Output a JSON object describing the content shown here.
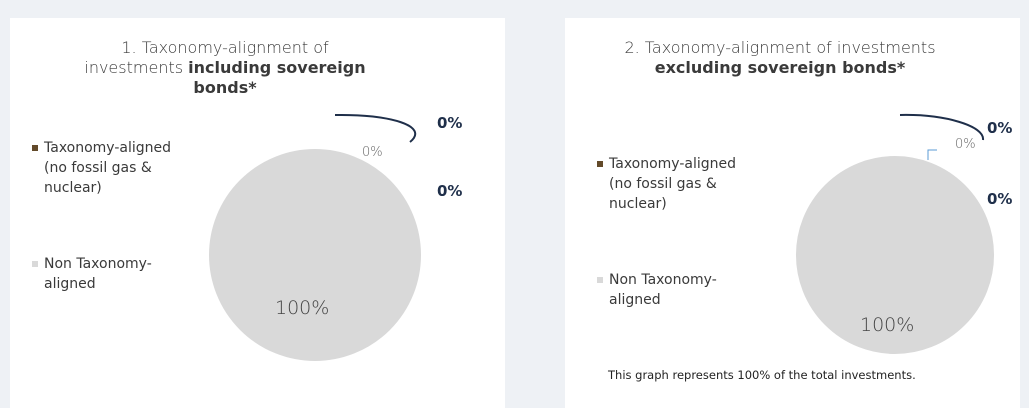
{
  "chart_data": [
    {
      "type": "pie",
      "title": {
        "text": "1. Taxonomy-alignment of investments",
        "bold": "including sovereign bonds*"
      },
      "series": [
        {
          "name": "Taxonomy-aligned (no fossil gas & nuclear)",
          "color": "#634a2a",
          "values": [
            0
          ]
        },
        {
          "name": "Non Taxonomy-aligned",
          "color": "#d9d9d9",
          "values": [
            100
          ]
        }
      ],
      "value_labels": [
        "0%",
        "100%"
      ],
      "annotations": [
        "0%",
        "0%"
      ]
    },
    {
      "type": "pie",
      "title": {
        "text": "2. Taxonomy-alignment of investments",
        "bold": "excluding sovereign bonds*"
      },
      "series": [
        {
          "name": "Taxonomy-aligned (no fossil gas & nuclear)",
          "color": "#634a2a",
          "values": [
            0
          ]
        },
        {
          "name": "Non Taxonomy-aligned",
          "color": "#d9d9d9",
          "values": [
            100
          ]
        }
      ],
      "value_labels": [
        "0%",
        "100%"
      ],
      "annotations": [
        "0%",
        "0%"
      ],
      "footnote": "This graph represents 100% of the total investments."
    }
  ]
}
